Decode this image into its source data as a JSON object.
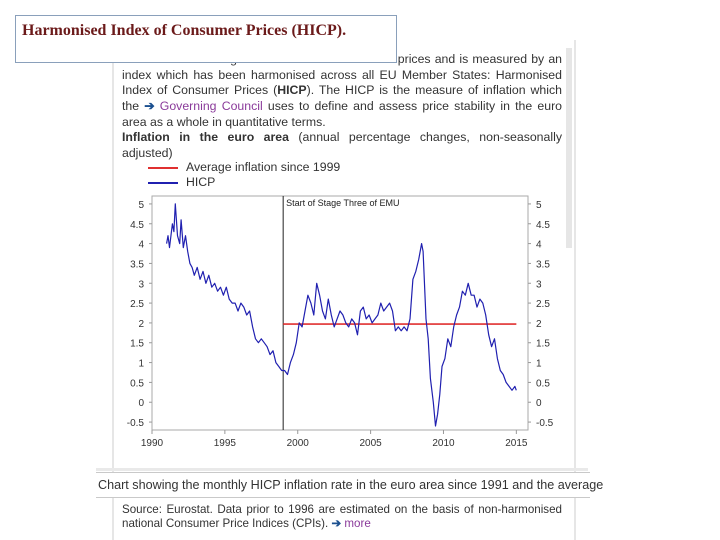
{
  "slide": {
    "title": "Harmonised Index of Consumer Prices (HICP)."
  },
  "intro": {
    "part1": "Inflation refers to a general increase in consumer prices and is measured by an index which has been harmonised across all EU Member States: Harmonised Index of Consumer Prices (",
    "hicp_bold": "HICP",
    "part2": "). The HICP is the measure of inflation which the ",
    "arrow": "➔",
    "link": "Governing Council",
    "part3": " uses to define and assess price stability in the euro area as a whole in quantitative terms."
  },
  "chart_heading": {
    "bold": "Inflation in the euro area",
    "rest": " (annual percentage changes, non-seasonally adjusted)"
  },
  "caption": "Chart showing the monthly HICP inflation rate in the euro area since 1991 and the average",
  "source": {
    "text": "Source: Eurostat. Data prior to 1996 are estimated on the basis of non-harmonised national Consumer Price Indices (CPIs).",
    "arrow": "➔",
    "more": "more"
  },
  "chart_data": {
    "type": "line",
    "x_tick_labels": [
      "1990",
      "1995",
      "2000",
      "2005",
      "2010",
      "2015"
    ],
    "y_tick_labels": [
      "5",
      "4.5",
      "4",
      "3.5",
      "3",
      "2.5",
      "2",
      "1.5",
      "1",
      "0.5",
      "0",
      "-0.5"
    ],
    "xlim": [
      1990,
      2015.8
    ],
    "ylim": [
      -0.7,
      5.2
    ],
    "annotation": {
      "label": "Start of Stage Three of EMU",
      "x": 1999.0
    },
    "grid": false,
    "legend_placement": "top-left",
    "series": [
      {
        "name": "Average inflation since 1999",
        "color": "#e03030",
        "x_range": [
          1999.0,
          2015.0
        ],
        "value": 1.97
      },
      {
        "name": "HICP",
        "color": "#2020b0",
        "points": [
          [
            1991.0,
            4.0
          ],
          [
            1991.1,
            4.2
          ],
          [
            1991.2,
            3.9
          ],
          [
            1991.4,
            4.5
          ],
          [
            1991.5,
            4.3
          ],
          [
            1991.6,
            5.0
          ],
          [
            1991.75,
            4.2
          ],
          [
            1991.9,
            4.0
          ],
          [
            1992.0,
            4.6
          ],
          [
            1992.15,
            3.9
          ],
          [
            1992.3,
            4.2
          ],
          [
            1992.45,
            3.8
          ],
          [
            1992.6,
            3.5
          ],
          [
            1992.75,
            3.4
          ],
          [
            1992.9,
            3.2
          ],
          [
            1993.1,
            3.4
          ],
          [
            1993.3,
            3.1
          ],
          [
            1993.5,
            3.3
          ],
          [
            1993.7,
            3.0
          ],
          [
            1993.9,
            3.2
          ],
          [
            1994.1,
            2.9
          ],
          [
            1994.3,
            3.0
          ],
          [
            1994.5,
            2.8
          ],
          [
            1994.7,
            2.9
          ],
          [
            1994.9,
            2.7
          ],
          [
            1995.1,
            2.9
          ],
          [
            1995.3,
            2.6
          ],
          [
            1995.5,
            2.5
          ],
          [
            1995.7,
            2.5
          ],
          [
            1995.9,
            2.3
          ],
          [
            1996.1,
            2.5
          ],
          [
            1996.3,
            2.4
          ],
          [
            1996.5,
            2.2
          ],
          [
            1996.7,
            2.3
          ],
          [
            1996.9,
            1.9
          ],
          [
            1997.1,
            1.6
          ],
          [
            1997.3,
            1.5
          ],
          [
            1997.5,
            1.6
          ],
          [
            1997.7,
            1.5
          ],
          [
            1997.9,
            1.4
          ],
          [
            1998.1,
            1.2
          ],
          [
            1998.3,
            1.3
          ],
          [
            1998.5,
            1.0
          ],
          [
            1998.7,
            0.9
          ],
          [
            1998.9,
            0.8
          ],
          [
            1999.1,
            0.8
          ],
          [
            1999.3,
            0.7
          ],
          [
            1999.5,
            1.0
          ],
          [
            1999.7,
            1.2
          ],
          [
            1999.9,
            1.5
          ],
          [
            2000.1,
            2.0
          ],
          [
            2000.3,
            1.9
          ],
          [
            2000.5,
            2.3
          ],
          [
            2000.7,
            2.7
          ],
          [
            2000.9,
            2.5
          ],
          [
            2001.1,
            2.2
          ],
          [
            2001.3,
            3.0
          ],
          [
            2001.5,
            2.7
          ],
          [
            2001.7,
            2.3
          ],
          [
            2001.9,
            2.1
          ],
          [
            2002.1,
            2.6
          ],
          [
            2002.3,
            2.2
          ],
          [
            2002.5,
            1.9
          ],
          [
            2002.7,
            2.1
          ],
          [
            2002.9,
            2.3
          ],
          [
            2003.1,
            2.2
          ],
          [
            2003.3,
            2.0
          ],
          [
            2003.5,
            1.9
          ],
          [
            2003.7,
            2.1
          ],
          [
            2003.9,
            2.0
          ],
          [
            2004.1,
            1.7
          ],
          [
            2004.3,
            2.3
          ],
          [
            2004.5,
            2.4
          ],
          [
            2004.7,
            2.1
          ],
          [
            2004.9,
            2.2
          ],
          [
            2005.1,
            2.0
          ],
          [
            2005.3,
            2.1
          ],
          [
            2005.5,
            2.2
          ],
          [
            2005.7,
            2.5
          ],
          [
            2005.9,
            2.3
          ],
          [
            2006.1,
            2.4
          ],
          [
            2006.3,
            2.5
          ],
          [
            2006.5,
            2.3
          ],
          [
            2006.7,
            1.8
          ],
          [
            2006.9,
            1.9
          ],
          [
            2007.1,
            1.8
          ],
          [
            2007.3,
            1.9
          ],
          [
            2007.5,
            1.8
          ],
          [
            2007.7,
            2.1
          ],
          [
            2007.9,
            3.1
          ],
          [
            2008.1,
            3.3
          ],
          [
            2008.3,
            3.6
          ],
          [
            2008.5,
            4.0
          ],
          [
            2008.6,
            3.8
          ],
          [
            2008.8,
            2.1
          ],
          [
            2008.95,
            1.6
          ],
          [
            2009.1,
            0.6
          ],
          [
            2009.3,
            0.0
          ],
          [
            2009.45,
            -0.6
          ],
          [
            2009.6,
            -0.3
          ],
          [
            2009.75,
            0.2
          ],
          [
            2009.9,
            0.9
          ],
          [
            2010.1,
            1.1
          ],
          [
            2010.3,
            1.6
          ],
          [
            2010.5,
            1.4
          ],
          [
            2010.7,
            1.9
          ],
          [
            2010.9,
            2.2
          ],
          [
            2011.1,
            2.4
          ],
          [
            2011.3,
            2.8
          ],
          [
            2011.5,
            2.7
          ],
          [
            2011.7,
            3.0
          ],
          [
            2011.9,
            2.7
          ],
          [
            2012.1,
            2.7
          ],
          [
            2012.3,
            2.4
          ],
          [
            2012.5,
            2.6
          ],
          [
            2012.7,
            2.5
          ],
          [
            2012.9,
            2.2
          ],
          [
            2013.1,
            1.7
          ],
          [
            2013.3,
            1.4
          ],
          [
            2013.5,
            1.6
          ],
          [
            2013.7,
            1.1
          ],
          [
            2013.9,
            0.8
          ],
          [
            2014.1,
            0.7
          ],
          [
            2014.3,
            0.5
          ],
          [
            2014.5,
            0.4
          ],
          [
            2014.7,
            0.3
          ],
          [
            2014.9,
            0.4
          ],
          [
            2015.0,
            0.3
          ]
        ]
      }
    ]
  }
}
